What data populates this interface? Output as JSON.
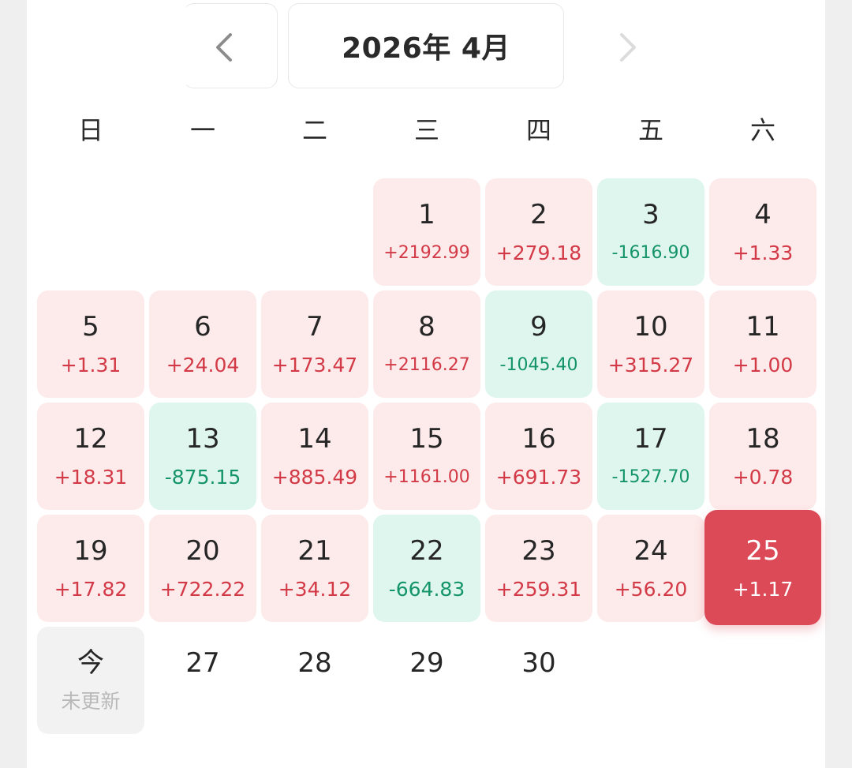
{
  "header": {
    "title": "2026年 4月",
    "prev_icon": "chevron-left-icon",
    "next_icon": "chevron-right-icon"
  },
  "weekdays": [
    "日",
    "一",
    "二",
    "三",
    "四",
    "五",
    "六"
  ],
  "days": [
    {
      "day": "1",
      "value": "+2192.99",
      "trend": "up"
    },
    {
      "day": "2",
      "value": "+279.18",
      "trend": "up"
    },
    {
      "day": "3",
      "value": "-1616.90",
      "trend": "down"
    },
    {
      "day": "4",
      "value": "+1.33",
      "trend": "up"
    },
    {
      "day": "5",
      "value": "+1.31",
      "trend": "up"
    },
    {
      "day": "6",
      "value": "+24.04",
      "trend": "up"
    },
    {
      "day": "7",
      "value": "+173.47",
      "trend": "up"
    },
    {
      "day": "8",
      "value": "+2116.27",
      "trend": "up"
    },
    {
      "day": "9",
      "value": "-1045.40",
      "trend": "down"
    },
    {
      "day": "10",
      "value": "+315.27",
      "trend": "up"
    },
    {
      "day": "11",
      "value": "+1.00",
      "trend": "up"
    },
    {
      "day": "12",
      "value": "+18.31",
      "trend": "up"
    },
    {
      "day": "13",
      "value": "-875.15",
      "trend": "down"
    },
    {
      "day": "14",
      "value": "+885.49",
      "trend": "up"
    },
    {
      "day": "15",
      "value": "+1161.00",
      "trend": "up"
    },
    {
      "day": "16",
      "value": "+691.73",
      "trend": "up"
    },
    {
      "day": "17",
      "value": "-1527.70",
      "trend": "down"
    },
    {
      "day": "18",
      "value": "+0.78",
      "trend": "up"
    },
    {
      "day": "19",
      "value": "+17.82",
      "trend": "up"
    },
    {
      "day": "20",
      "value": "+722.22",
      "trend": "up"
    },
    {
      "day": "21",
      "value": "+34.12",
      "trend": "up"
    },
    {
      "day": "22",
      "value": "-664.83",
      "trend": "down"
    },
    {
      "day": "23",
      "value": "+259.31",
      "trend": "up"
    },
    {
      "day": "24",
      "value": "+56.20",
      "trend": "up"
    },
    {
      "day": "25",
      "value": "+1.17",
      "trend": "selected"
    },
    {
      "day": "今",
      "value": "未更新",
      "trend": "today"
    },
    {
      "day": "27",
      "value": "",
      "trend": "plain"
    },
    {
      "day": "28",
      "value": "",
      "trend": "plain"
    },
    {
      "day": "29",
      "value": "",
      "trend": "plain"
    },
    {
      "day": "30",
      "value": "",
      "trend": "plain"
    }
  ],
  "colors": {
    "up_bg": "#fdeaea",
    "up_text": "#d33a47",
    "down_bg": "#dff6ee",
    "down_text": "#14946a",
    "selected_bg": "#dc4a58"
  }
}
